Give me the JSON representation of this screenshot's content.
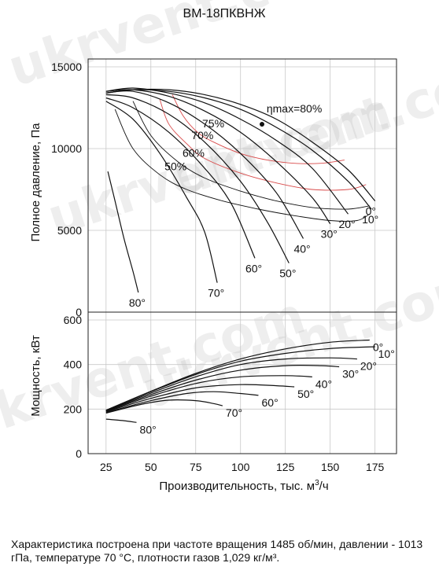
{
  "watermark": "ukrvent.com",
  "note": "Характеристика построена при частоте вращения 1485 об/мин, давлении - 1013 гПа, температуре 70 °С, плотности газов 1,029 кг/м³.",
  "colors": {
    "curve": "#111111",
    "efficiency": "#d94b4b",
    "grid": "#c8c8c8"
  },
  "chart_data": [
    {
      "type": "line",
      "title": "ВМ-18ПКВНЖ",
      "ylabel": "Полное давление, Па",
      "xlim": [
        15,
        187
      ],
      "ylim": [
        0,
        15000
      ],
      "yticks": [
        0,
        5000,
        10000,
        15000
      ],
      "grid": true,
      "series": [
        {
          "name": "0°",
          "x": [
            25,
            40,
            60,
            80,
            100,
            120,
            140,
            160,
            175
          ],
          "y": [
            13400,
            13600,
            13600,
            13300,
            12700,
            11800,
            10400,
            8700,
            6800
          ]
        },
        {
          "name": "10°",
          "x": [
            25,
            40,
            60,
            80,
            100,
            120,
            140,
            160,
            173
          ],
          "y": [
            13400,
            13600,
            13500,
            13100,
            12400,
            11300,
            9900,
            8000,
            6300
          ]
        },
        {
          "name": "20°",
          "x": [
            25,
            40,
            60,
            80,
            100,
            120,
            140,
            160
          ],
          "y": [
            13500,
            13700,
            13400,
            12800,
            11800,
            10500,
            8800,
            6000
          ]
        },
        {
          "name": "30°",
          "x": [
            25,
            40,
            60,
            80,
            100,
            120,
            140,
            150
          ],
          "y": [
            13500,
            13600,
            13200,
            12300,
            11000,
            9200,
            7000,
            5400
          ]
        },
        {
          "name": "40°",
          "x": [
            25,
            40,
            60,
            80,
            100,
            120,
            135
          ],
          "y": [
            13400,
            13500,
            12800,
            11500,
            9700,
            7300,
            4500
          ]
        },
        {
          "name": "50°",
          "x": [
            25,
            40,
            60,
            80,
            100,
            115,
            127
          ],
          "y": [
            13300,
            13100,
            12100,
            10400,
            8000,
            5500,
            3000
          ]
        },
        {
          "name": "60°",
          "x": [
            25,
            40,
            60,
            80,
            95,
            108
          ],
          "y": [
            13100,
            12500,
            11000,
            8800,
            6600,
            3300
          ]
        },
        {
          "name": "70°",
          "x": [
            25,
            40,
            55,
            70,
            80,
            87
          ],
          "y": [
            12900,
            11800,
            9700,
            7000,
            4900,
            1800
          ]
        },
        {
          "name": "80°",
          "x": [
            26,
            30,
            35,
            40,
            43
          ],
          "y": [
            8600,
            6800,
            4500,
            2500,
            1200
          ]
        }
      ],
      "efficiency_contours": [
        {
          "label": "50%",
          "color": "black",
          "x": [
            30,
            40,
            55,
            70,
            90,
            110,
            130,
            150,
            165,
            172
          ],
          "y": [
            12400,
            10000,
            8400,
            7500,
            6800,
            6300,
            5900,
            5600,
            5600,
            6000
          ]
        },
        {
          "label": "60%",
          "color": "black",
          "x": [
            40,
            50,
            65,
            80,
            100,
            120,
            140,
            160,
            172
          ],
          "y": [
            12900,
            10800,
            9200,
            8200,
            7400,
            6800,
            6400,
            6300,
            6500
          ]
        },
        {
          "label": "70%",
          "color": "red",
          "x": [
            55,
            60,
            70,
            80,
            100,
            120,
            140,
            160,
            170
          ],
          "y": [
            13000,
            11500,
            10300,
            9400,
            8500,
            7900,
            7500,
            7500,
            7800
          ]
        },
        {
          "label": "75%",
          "color": "red",
          "x": [
            62,
            68,
            76,
            85,
            100,
            115,
            130,
            145,
            158
          ],
          "y": [
            13300,
            12000,
            11000,
            10400,
            9700,
            9300,
            9100,
            9100,
            9300
          ]
        }
      ],
      "annotations": [
        {
          "text": "ηmax=80%",
          "x": 130,
          "y": 12200
        },
        {
          "text": "●",
          "x": 112,
          "y": 11300
        }
      ]
    },
    {
      "type": "line",
      "ylabel": "Мощность, кВт",
      "xlabel": "Производительность, тыс. м³/ч",
      "xlim": [
        15,
        187
      ],
      "ylim": [
        0,
        600
      ],
      "yticks": [
        0,
        200,
        400,
        600
      ],
      "xticks": [
        25,
        50,
        75,
        100,
        125,
        150,
        175
      ],
      "grid": true,
      "series": [
        {
          "name": "0°",
          "x": [
            25,
            50,
            75,
            100,
            125,
            150,
            172
          ],
          "y": [
            195,
            280,
            360,
            425,
            470,
            500,
            510
          ]
        },
        {
          "name": "10°",
          "x": [
            25,
            50,
            75,
            100,
            125,
            150,
            175
          ],
          "y": [
            195,
            278,
            355,
            415,
            450,
            472,
            480
          ]
        },
        {
          "name": "20°",
          "x": [
            25,
            50,
            75,
            100,
            125,
            150,
            165
          ],
          "y": [
            193,
            272,
            345,
            400,
            425,
            430,
            425
          ]
        },
        {
          "name": "30°",
          "x": [
            25,
            50,
            75,
            100,
            125,
            145,
            155
          ],
          "y": [
            192,
            265,
            330,
            375,
            395,
            395,
            390
          ]
        },
        {
          "name": "40°",
          "x": [
            25,
            50,
            75,
            100,
            125,
            140
          ],
          "y": [
            190,
            258,
            315,
            345,
            350,
            345
          ]
        },
        {
          "name": "50°",
          "x": [
            25,
            50,
            75,
            100,
            120,
            130
          ],
          "y": [
            188,
            248,
            295,
            310,
            305,
            300
          ]
        },
        {
          "name": "60°",
          "x": [
            25,
            50,
            70,
            85,
            100,
            110
          ],
          "y": [
            185,
            238,
            270,
            278,
            270,
            262
          ]
        },
        {
          "name": "70°",
          "x": [
            25,
            45,
            60,
            75,
            85,
            90
          ],
          "y": [
            182,
            222,
            240,
            238,
            225,
            215
          ]
        },
        {
          "name": "80°",
          "x": [
            25,
            35,
            42
          ],
          "y": [
            155,
            148,
            140
          ]
        }
      ]
    }
  ]
}
